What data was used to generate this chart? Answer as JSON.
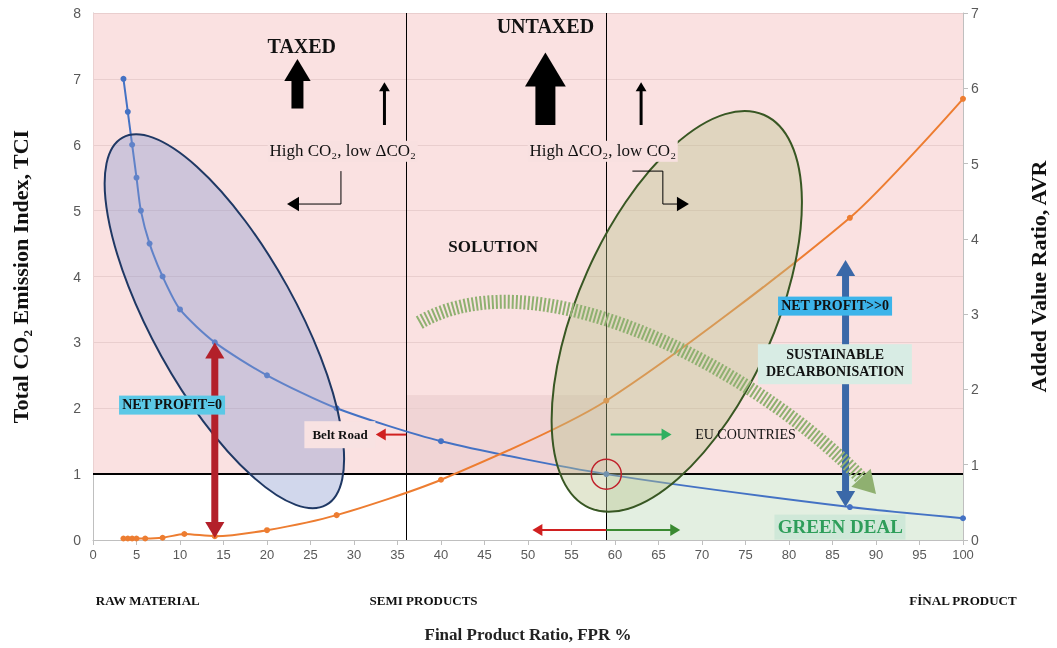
{
  "chart_data": {
    "type": "line",
    "xlabel": "Final Product Ratio, FPR %",
    "ylabel": "Total CO₂ Emission Index, TCI",
    "y2label": "Added Value Ratio, AVR",
    "series": [
      {
        "color": "#4472c4",
        "x": [
          3.5,
          4,
          4.5,
          5,
          5.5,
          6.5,
          8,
          10,
          14,
          20,
          28,
          40,
          59,
          87,
          100
        ],
        "values": [
          7,
          6.5,
          6,
          5.5,
          5,
          4.5,
          4,
          3.5,
          3,
          2.5,
          2,
          1.5,
          1,
          0.5,
          0.33
        ]
      },
      {
        "color": "#ed7d31",
        "axis": "y2",
        "x": [
          3.5,
          4,
          4.5,
          5,
          6,
          8,
          10.5,
          14,
          20,
          28,
          40,
          59,
          87,
          100
        ],
        "values": [
          0.02,
          0.02,
          0.02,
          0.02,
          0.02,
          0.03,
          0.08,
          0.05,
          0.13,
          0.33,
          0.8,
          1.85,
          4.28,
          5.86
        ]
      }
    ],
    "xlim": [
      0,
      100
    ],
    "xticks": [
      0,
      5,
      10,
      15,
      20,
      25,
      30,
      35,
      40,
      45,
      50,
      55,
      60,
      65,
      70,
      75,
      80,
      85,
      90,
      95,
      100
    ],
    "ylim": [
      0,
      8
    ],
    "yticks": [
      0,
      1,
      2,
      3,
      4,
      5,
      6,
      7,
      8
    ],
    "y2lim": [
      0,
      7
    ],
    "y2ticks": [
      0,
      1,
      2,
      3,
      4,
      5,
      6,
      7
    ],
    "grid": "y",
    "marker": "circle",
    "line_style": "solid",
    "ref_lines": [
      {
        "axis": "y",
        "value": 1,
        "label": null,
        "color": "#000000"
      },
      {
        "axis": "x",
        "value": 36,
        "label": null,
        "color": "#000000"
      },
      {
        "axis": "x",
        "value": 59,
        "label": null,
        "color": "#000000"
      }
    ],
    "bands": [
      {
        "axis": "y",
        "from": 1,
        "to": 8,
        "label": null,
        "color": "#f8d7d7"
      }
    ],
    "annotations": [
      "TAXED",
      "UNTAXED",
      "High CO₂, low ΔCO₂",
      "High ΔCO₂, low CO₂",
      "SOLUTION",
      "NET PROFIT=0",
      "Belt Road",
      "EU COUNTRIES",
      "NET PROFIT>>0",
      "SUSTAINABLE\nDECARBONISATION",
      "GREEN DEAL",
      "RAW MATERIAL",
      "SEMI PRODUCTS",
      "FİNAL PRODUCT"
    ]
  }
}
